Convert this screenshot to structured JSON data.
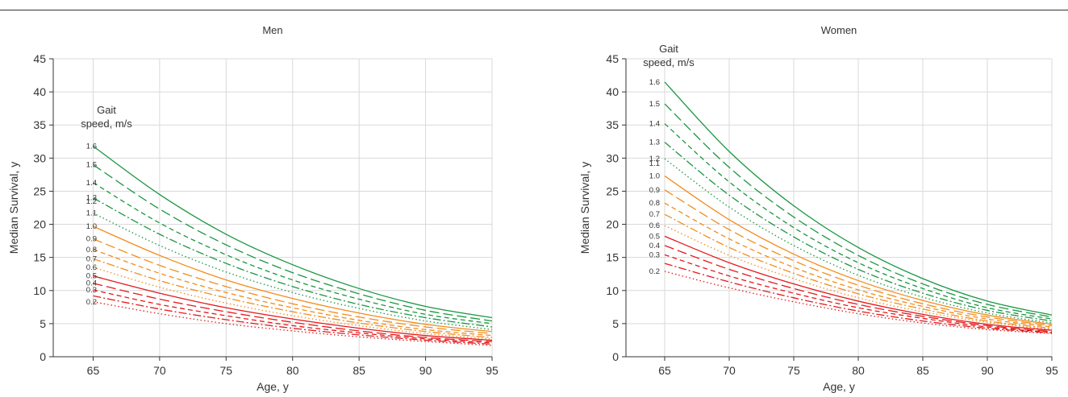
{
  "chart_data": [
    {
      "type": "line",
      "title": "Men",
      "xlabel": "Age, y",
      "ylabel": "Median Survival, y",
      "xlim": [
        62,
        95
      ],
      "ylim": [
        0,
        45
      ],
      "xticks": [
        65,
        70,
        75,
        80,
        85,
        90,
        95
      ],
      "yticks": [
        0,
        5,
        10,
        15,
        20,
        25,
        30,
        35,
        40,
        45
      ],
      "grid": true,
      "legend_title": [
        "Gait",
        "speed, m/s"
      ],
      "x": [
        65,
        70,
        75,
        80,
        85,
        90,
        95
      ],
      "series": [
        {
          "name": "1.6",
          "color": "#1a9641",
          "dash": "solid",
          "values": [
            31.8,
            24.5,
            18.5,
            13.9,
            10.3,
            7.6,
            5.9
          ]
        },
        {
          "name": "1.5",
          "color": "#1a9641",
          "dash": "longdash",
          "values": [
            29.0,
            22.3,
            16.9,
            12.7,
            9.5,
            7.0,
            5.4
          ]
        },
        {
          "name": "1.4",
          "color": "#1a9641",
          "dash": "dash",
          "values": [
            26.3,
            20.2,
            15.4,
            11.6,
            8.7,
            6.4,
            5.0
          ]
        },
        {
          "name": "1.3",
          "color": "#1a9641",
          "dash": "dashdot",
          "values": [
            24.0,
            18.5,
            14.1,
            10.6,
            7.9,
            5.9,
            4.5
          ]
        },
        {
          "name": "1.1",
          "color": "#1a9641",
          "dash": "dot",
          "values": [
            21.7,
            16.8,
            12.8,
            9.7,
            7.3,
            5.4,
            4.1
          ]
        },
        {
          "name": "1.0",
          "color": "#f28c1c",
          "dash": "solid",
          "values": [
            19.7,
            15.3,
            11.6,
            8.8,
            6.6,
            4.9,
            3.8
          ]
        },
        {
          "name": "0.9",
          "color": "#f28c1c",
          "dash": "longdash",
          "values": [
            17.8,
            13.8,
            10.6,
            8.0,
            6.0,
            4.5,
            3.5
          ]
        },
        {
          "name": "0.8",
          "color": "#f28c1c",
          "dash": "dash",
          "values": [
            16.2,
            12.6,
            9.7,
            7.4,
            5.5,
            4.1,
            3.2
          ]
        },
        {
          "name": "0.7",
          "color": "#f28c1c",
          "dash": "dashdot",
          "values": [
            14.8,
            11.5,
            8.9,
            6.8,
            5.1,
            3.8,
            2.9
          ]
        },
        {
          "name": "0.6",
          "color": "#f28c1c",
          "dash": "dot",
          "values": [
            13.5,
            10.5,
            8.1,
            6.2,
            4.7,
            3.5,
            2.7
          ]
        },
        {
          "name": "0.5",
          "color": "#e41a1c",
          "dash": "solid",
          "values": [
            12.2,
            9.6,
            7.4,
            5.7,
            4.3,
            3.2,
            2.5
          ]
        },
        {
          "name": "0.4",
          "color": "#e41a1c",
          "dash": "longdash",
          "values": [
            11.1,
            8.7,
            6.8,
            5.2,
            3.9,
            2.9,
            2.3
          ]
        },
        {
          "name": "0.3",
          "color": "#e41a1c",
          "dash": "dash",
          "values": [
            10.1,
            7.9,
            6.2,
            4.7,
            3.6,
            2.7,
            2.1
          ]
        },
        {
          "name": "",
          "color": "#e41a1c",
          "dash": "dashdot",
          "values": [
            9.2,
            7.2,
            5.6,
            4.3,
            3.3,
            2.5,
            1.9
          ]
        },
        {
          "name": "0.2",
          "color": "#e41a1c",
          "dash": "dot",
          "values": [
            8.3,
            6.5,
            5.0,
            3.9,
            3.0,
            2.3,
            1.7
          ]
        }
      ],
      "extra_label": "1.2"
    },
    {
      "type": "line",
      "title": "Women",
      "xlabel": "Age, y",
      "ylabel": "Median Survival, y",
      "xlim": [
        62,
        95
      ],
      "ylim": [
        0,
        45
      ],
      "xticks": [
        65,
        70,
        75,
        80,
        85,
        90,
        95
      ],
      "yticks": [
        0,
        5,
        10,
        15,
        20,
        25,
        30,
        35,
        40,
        45
      ],
      "grid": true,
      "legend_title": [
        "Gait",
        "speed, m/s"
      ],
      "x": [
        65,
        70,
        75,
        80,
        85,
        90,
        95
      ],
      "series": [
        {
          "name": "1.6",
          "color": "#1a9641",
          "dash": "solid",
          "values": [
            41.5,
            31.0,
            22.8,
            16.5,
            11.8,
            8.4,
            6.3
          ]
        },
        {
          "name": "1.5",
          "color": "#1a9641",
          "dash": "longdash",
          "values": [
            38.2,
            28.6,
            21.1,
            15.3,
            11.0,
            7.9,
            6.0
          ]
        },
        {
          "name": "1.4",
          "color": "#1a9641",
          "dash": "dash",
          "values": [
            35.2,
            26.4,
            19.5,
            14.2,
            10.3,
            7.4,
            5.7
          ]
        },
        {
          "name": "1.3",
          "color": "#1a9641",
          "dash": "dashdot",
          "values": [
            32.4,
            24.4,
            18.1,
            13.2,
            9.6,
            7.0,
            5.4
          ]
        },
        {
          "name": "1.2",
          "color": "#1a9641",
          "dash": "dot",
          "values": [
            29.9,
            22.6,
            16.8,
            12.3,
            9.0,
            6.6,
            5.1
          ]
        },
        {
          "name": "1.0",
          "color": "#f28c1c",
          "dash": "solid",
          "values": [
            27.3,
            20.7,
            15.5,
            11.5,
            8.5,
            6.3,
            4.9
          ]
        },
        {
          "name": "0.9",
          "color": "#f28c1c",
          "dash": "longdash",
          "values": [
            25.2,
            19.2,
            14.5,
            10.8,
            8.0,
            6.0,
            4.7
          ]
        },
        {
          "name": "0.8",
          "color": "#f28c1c",
          "dash": "dash",
          "values": [
            23.2,
            17.8,
            13.5,
            10.1,
            7.6,
            5.7,
            4.5
          ]
        },
        {
          "name": "0.7",
          "color": "#f28c1c",
          "dash": "dashdot",
          "values": [
            21.5,
            16.5,
            12.6,
            9.5,
            7.2,
            5.4,
            4.3
          ]
        },
        {
          "name": "0.6",
          "color": "#f28c1c",
          "dash": "dot",
          "values": [
            19.8,
            15.3,
            11.8,
            8.9,
            6.8,
            5.2,
            4.1
          ]
        },
        {
          "name": "0.5",
          "color": "#e41a1c",
          "dash": "solid",
          "values": [
            18.2,
            14.2,
            11.0,
            8.4,
            6.4,
            4.9,
            4.0
          ]
        },
        {
          "name": "0.4",
          "color": "#e41a1c",
          "dash": "longdash",
          "values": [
            16.8,
            13.2,
            10.3,
            7.9,
            6.1,
            4.7,
            3.8
          ]
        },
        {
          "name": "0.3",
          "color": "#e41a1c",
          "dash": "dash",
          "values": [
            15.4,
            12.2,
            9.6,
            7.4,
            5.8,
            4.5,
            3.7
          ]
        },
        {
          "name": "",
          "color": "#e41a1c",
          "dash": "dashdot",
          "values": [
            14.1,
            11.3,
            8.9,
            6.9,
            5.4,
            4.3,
            3.6
          ]
        },
        {
          "name": "0.2",
          "color": "#e41a1c",
          "dash": "dot",
          "values": [
            12.9,
            10.4,
            8.3,
            6.5,
            5.1,
            4.1,
            3.5
          ]
        }
      ],
      "extra_label": "1.1"
    }
  ]
}
